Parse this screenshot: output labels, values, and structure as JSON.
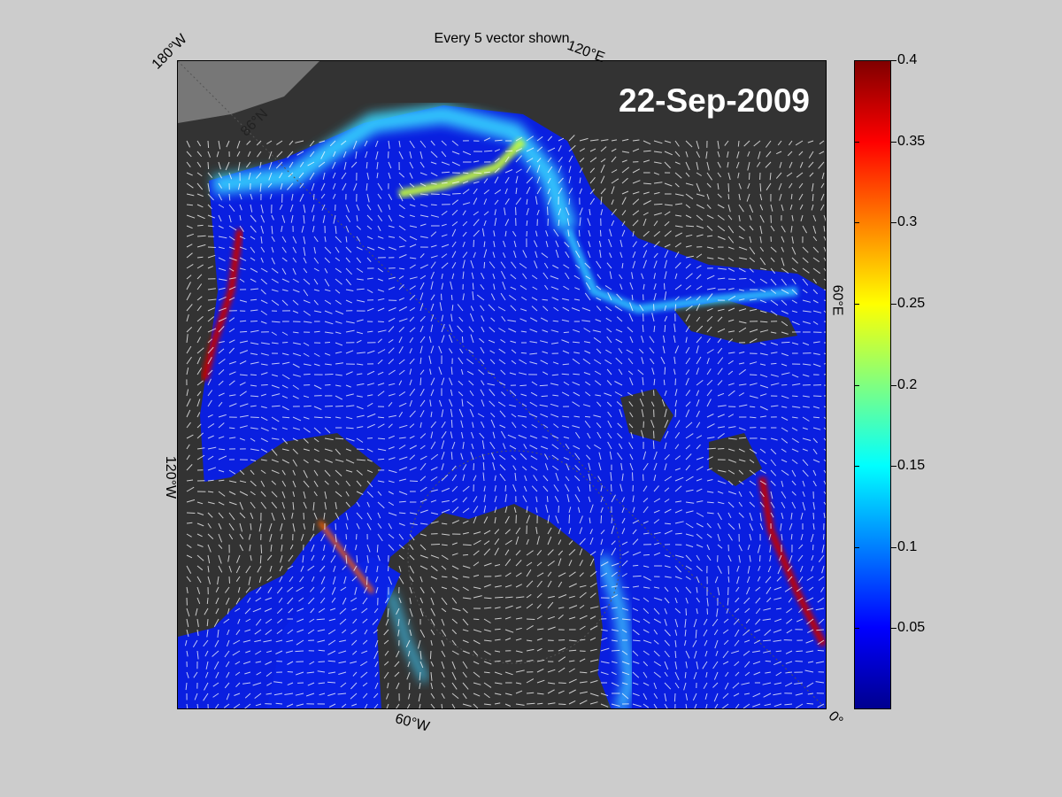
{
  "title": "Every 5 vector shown",
  "date": "22-Sep-2009",
  "map_labels": {
    "lon_180w": "180°W",
    "lon_120e": "120°E",
    "lon_60e": "60°E",
    "lon_120w": "120°W",
    "lon_60w": "60°W",
    "lon_0": "0°",
    "lat_86n": "86°N"
  },
  "colorbar": {
    "colormap": "jet",
    "range": [
      0,
      0.4
    ],
    "ticks": [
      "0.4",
      "0.35",
      "0.3",
      "0.25",
      "0.2",
      "0.15",
      "0.1",
      "0.05"
    ]
  },
  "colors": {
    "background": "#cccccc",
    "land": "#333333",
    "ocean_low": "#0a1fe0",
    "vector": "#ffffff"
  }
}
